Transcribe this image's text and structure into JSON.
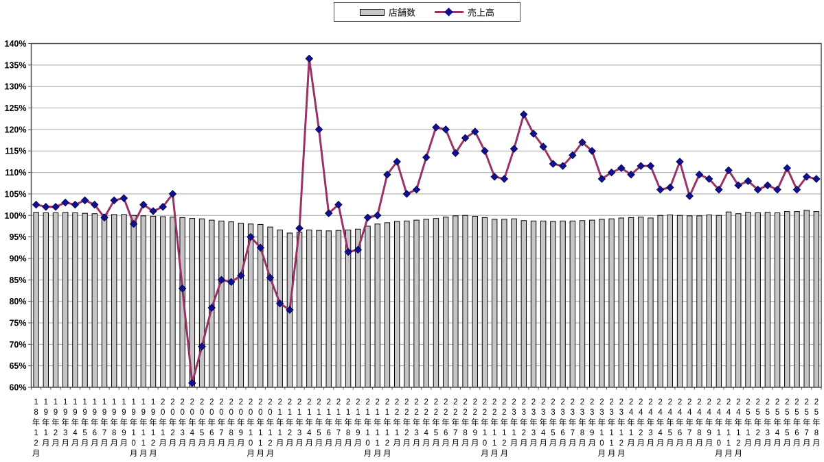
{
  "legend": {
    "stores_label": "店舗数",
    "sales_label": "売上高"
  },
  "y_axis": {
    "tick_labels": [
      "140%",
      "135%",
      "130%",
      "125%",
      "120%",
      "115%",
      "110%",
      "105%",
      "100%",
      "95%",
      "90%",
      "85%",
      "80%",
      "75%",
      "70%",
      "65%",
      "60%"
    ]
  },
  "chart_data": {
    "type": "combo",
    "grid": true,
    "legend_position": "top-center",
    "ylim": [
      60,
      140
    ],
    "y_step": 5,
    "colors": {
      "bar_fill": "#c6c6c6",
      "bar_border": "#000000",
      "line": "#993366",
      "marker": "#101090",
      "grid": "#a8a8a8",
      "axis": "#4d4d4d",
      "background": "#ffffff"
    },
    "categories": [
      "18年12月",
      "19年1月",
      "19年2月",
      "19年3月",
      "19年4月",
      "19年5月",
      "19年6月",
      "19年7月",
      "19年8月",
      "19年9月",
      "19年10月",
      "19年11月",
      "19年12月",
      "20年1月",
      "20年2月",
      "20年3月",
      "20年4月",
      "20年5月",
      "20年6月",
      "20年7月",
      "20年8月",
      "20年9月",
      "20年10月",
      "20年11月",
      "20年12月",
      "21年1月",
      "21年2月",
      "21年3月",
      "21年4月",
      "21年5月",
      "21年6月",
      "21年7月",
      "21年8月",
      "21年9月",
      "21年10月",
      "21年11月",
      "21年12月",
      "22年1月",
      "22年2月",
      "22年3月",
      "22年4月",
      "22年5月",
      "22年6月",
      "22年7月",
      "22年8月",
      "22年9月",
      "22年10月",
      "22年11月",
      "22年12月",
      "23年1月",
      "23年2月",
      "23年3月",
      "23年4月",
      "23年5月",
      "23年6月",
      "23年7月",
      "23年8月",
      "23年9月",
      "23年10月",
      "23年11月",
      "23年12月",
      "24年1月",
      "24年2月",
      "24年3月",
      "24年4月",
      "24年5月",
      "24年6月",
      "24年7月",
      "24年8月",
      "24年9月",
      "24年10月",
      "24年11月",
      "24年12月",
      "25年1月",
      "25年2月",
      "25年3月",
      "25年4月",
      "25年5月",
      "25年6月",
      "25年7月",
      "25年8月"
    ],
    "series": [
      {
        "name": "店舗数",
        "type": "bar",
        "color": "#c6c6c6",
        "border_color": "#000000",
        "values": [
          100.7,
          100.6,
          100.6,
          100.7,
          100.6,
          100.5,
          100.4,
          100.3,
          100.2,
          100.2,
          100,
          99.9,
          99.8,
          99.7,
          99.6,
          99.5,
          99.3,
          99.2,
          98.9,
          98.7,
          98.5,
          98.2,
          98,
          97.9,
          97.3,
          96.6,
          95.9,
          96.1,
          96.6,
          96.5,
          96.4,
          96.5,
          96.6,
          96.8,
          97.5,
          98,
          98.3,
          98.6,
          98.7,
          98.9,
          99.1,
          99.3,
          99.6,
          99.9,
          100,
          99.8,
          99.5,
          99.1,
          99.1,
          99.2,
          98.8,
          98.7,
          98.7,
          98.6,
          98.7,
          98.7,
          98.8,
          98.9,
          99.1,
          99.2,
          99.4,
          99.5,
          99.6,
          99.4,
          100,
          100.1,
          100,
          99.9,
          99.9,
          100.1,
          100,
          100.8,
          100.4,
          100.7,
          100.6,
          100.7,
          100.6,
          100.9,
          100.9,
          101.2,
          100.9
        ]
      },
      {
        "name": "売上高",
        "type": "line",
        "color": "#993366",
        "marker": "diamond",
        "marker_color": "#101090",
        "values": [
          102.5,
          102,
          102,
          103,
          102.5,
          103.5,
          102.5,
          99.5,
          103.5,
          104,
          98,
          102.5,
          101,
          102,
          105,
          83,
          61,
          69.5,
          78.5,
          85,
          84.5,
          86,
          95,
          92.5,
          85.5,
          79.5,
          78,
          97,
          136.5,
          120,
          100.5,
          102.5,
          91.5,
          92,
          99.5,
          100,
          109.5,
          112.5,
          105,
          106,
          113.5,
          120.5,
          120,
          114.5,
          118,
          119.5,
          115,
          109,
          108.5,
          115.5,
          123.5,
          119,
          116,
          112,
          111.5,
          114,
          117,
          115,
          108.5,
          110,
          111,
          109.5,
          111.5,
          111.5,
          106,
          106.5,
          112.5,
          104.5,
          109.5,
          108.5,
          106,
          110.5,
          107,
          108,
          106,
          107,
          106,
          111,
          106,
          109,
          108.5
        ]
      }
    ]
  }
}
